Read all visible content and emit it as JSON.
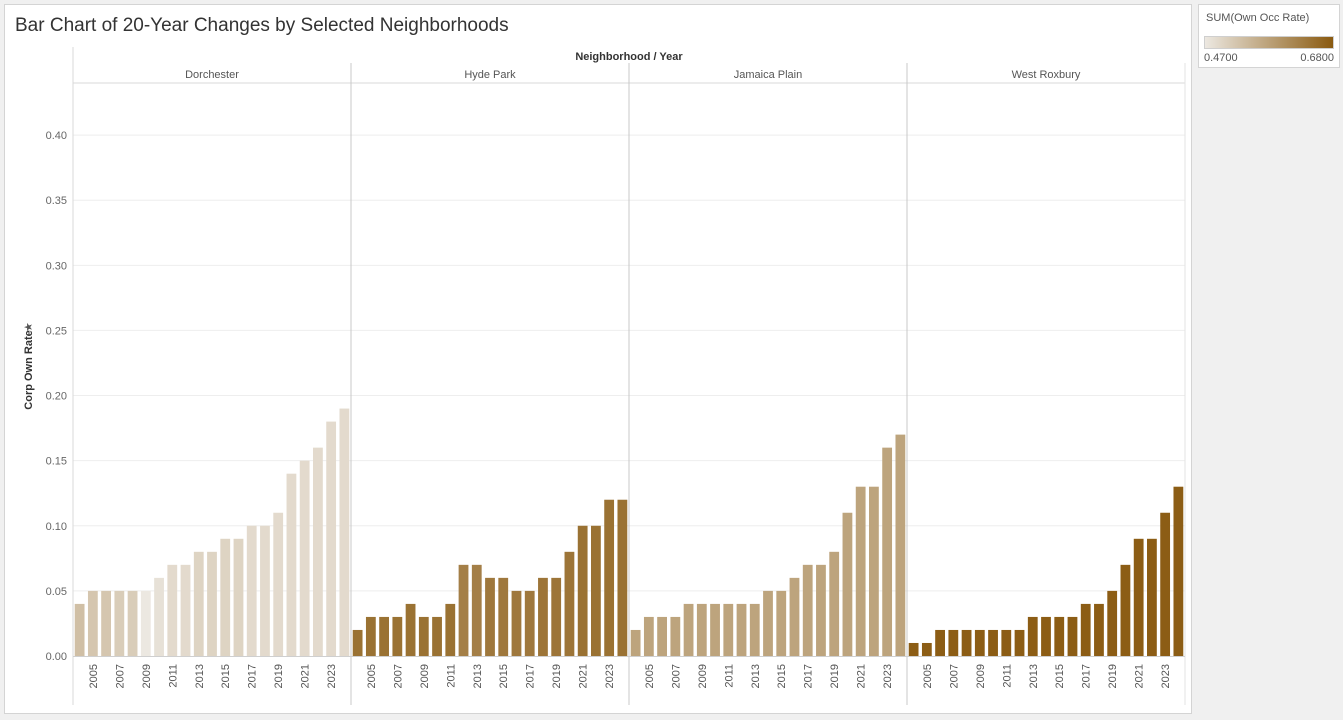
{
  "chart_data": {
    "type": "bar",
    "title": "Bar Chart of 20-Year Changes by Selected Neighborhoods",
    "column_header": "Neighborhood / Year",
    "ylabel": "Corp Own Rate",
    "ylim": [
      0,
      0.44
    ],
    "yticks": [
      "0.00",
      "0.05",
      "0.10",
      "0.15",
      "0.20",
      "0.25",
      "0.30",
      "0.35",
      "0.40"
    ],
    "ytick_values": [
      0,
      0.05,
      0.1,
      0.15,
      0.2,
      0.25,
      0.3,
      0.35,
      0.4
    ],
    "grid": true,
    "years": [
      2004,
      2005,
      2006,
      2007,
      2008,
      2009,
      2010,
      2011,
      2012,
      2013,
      2014,
      2015,
      2016,
      2017,
      2018,
      2019,
      2020,
      2021,
      2022,
      2023,
      2024
    ],
    "xtick_labels": [
      "2005",
      "2007",
      "2009",
      "2011",
      "2013",
      "2015",
      "2017",
      "2019",
      "2021",
      "2023"
    ],
    "color_measure": "SUM(Own Occ Rate)",
    "color_range": [
      0.47,
      0.68
    ],
    "color_low": "#ece8e1",
    "color_high": "#8a5a10",
    "panels": [
      {
        "name": "Dorchester",
        "values": [
          0.04,
          0.05,
          0.05,
          0.05,
          0.05,
          0.05,
          0.06,
          0.07,
          0.07,
          0.08,
          0.08,
          0.09,
          0.09,
          0.1,
          0.1,
          0.11,
          0.14,
          0.15,
          0.16,
          0.18,
          0.19
        ],
        "color_values": [
          0.53,
          0.52,
          0.52,
          0.51,
          0.51,
          0.47,
          0.48,
          0.49,
          0.49,
          0.5,
          0.5,
          0.5,
          0.5,
          0.49,
          0.49,
          0.49,
          0.49,
          0.49,
          0.49,
          0.49,
          0.49
        ]
      },
      {
        "name": "Hyde Park",
        "values": [
          0.02,
          0.03,
          0.03,
          0.03,
          0.04,
          0.03,
          0.03,
          0.04,
          0.07,
          0.07,
          0.06,
          0.06,
          0.05,
          0.05,
          0.06,
          0.06,
          0.08,
          0.1,
          0.1,
          0.12,
          0.12
        ],
        "color_values": [
          0.645,
          0.645,
          0.645,
          0.645,
          0.645,
          0.645,
          0.645,
          0.645,
          0.625,
          0.625,
          0.635,
          0.635,
          0.635,
          0.635,
          0.64,
          0.64,
          0.64,
          0.645,
          0.645,
          0.645,
          0.645
        ]
      },
      {
        "name": "Jamaica Plain",
        "values": [
          0.02,
          0.03,
          0.03,
          0.03,
          0.04,
          0.04,
          0.04,
          0.04,
          0.04,
          0.04,
          0.05,
          0.05,
          0.06,
          0.07,
          0.07,
          0.08,
          0.11,
          0.13,
          0.13,
          0.16,
          0.17
        ],
        "color_values": [
          0.57,
          0.57,
          0.57,
          0.57,
          0.57,
          0.57,
          0.57,
          0.57,
          0.57,
          0.57,
          0.57,
          0.57,
          0.57,
          0.57,
          0.57,
          0.57,
          0.57,
          0.57,
          0.57,
          0.57,
          0.57
        ]
      },
      {
        "name": "West Roxbury",
        "values": [
          0.01,
          0.01,
          0.02,
          0.02,
          0.02,
          0.02,
          0.02,
          0.02,
          0.02,
          0.03,
          0.03,
          0.03,
          0.03,
          0.04,
          0.04,
          0.05,
          0.07,
          0.09,
          0.09,
          0.11,
          0.13
        ],
        "color_values": [
          0.675,
          0.675,
          0.675,
          0.675,
          0.675,
          0.675,
          0.675,
          0.675,
          0.675,
          0.675,
          0.675,
          0.675,
          0.675,
          0.675,
          0.675,
          0.675,
          0.675,
          0.675,
          0.675,
          0.675,
          0.675
        ]
      }
    ]
  },
  "legend": {
    "title": "SUM(Own Occ Rate)",
    "min_label": "0.4700",
    "max_label": "0.6800"
  }
}
